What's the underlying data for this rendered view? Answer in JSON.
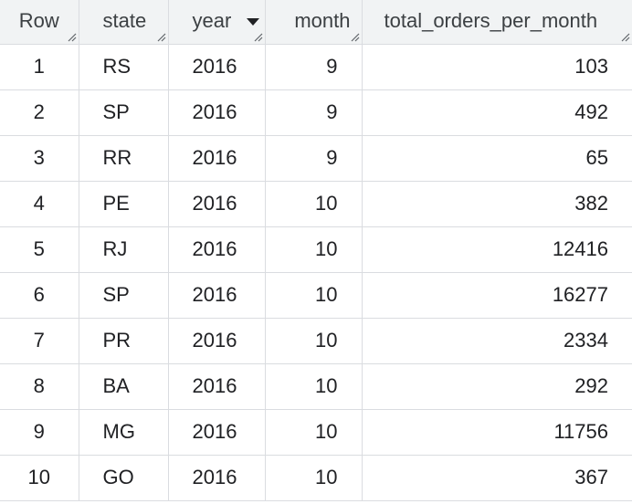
{
  "table": {
    "columns": [
      {
        "label": "Row"
      },
      {
        "label": "state"
      },
      {
        "label": "year",
        "sorted": "descending"
      },
      {
        "label": "month"
      },
      {
        "label": "total_orders_per_month"
      }
    ],
    "rows": [
      {
        "row": "1",
        "state": "RS",
        "year": "2016",
        "month": "9",
        "total": "103"
      },
      {
        "row": "2",
        "state": "SP",
        "year": "2016",
        "month": "9",
        "total": "492"
      },
      {
        "row": "3",
        "state": "RR",
        "year": "2016",
        "month": "9",
        "total": "65"
      },
      {
        "row": "4",
        "state": "PE",
        "year": "2016",
        "month": "10",
        "total": "382"
      },
      {
        "row": "5",
        "state": "RJ",
        "year": "2016",
        "month": "10",
        "total": "12416"
      },
      {
        "row": "6",
        "state": "SP",
        "year": "2016",
        "month": "10",
        "total": "16277"
      },
      {
        "row": "7",
        "state": "PR",
        "year": "2016",
        "month": "10",
        "total": "2334"
      },
      {
        "row": "8",
        "state": "BA",
        "year": "2016",
        "month": "10",
        "total": "292"
      },
      {
        "row": "9",
        "state": "MG",
        "year": "2016",
        "month": "10",
        "total": "11756"
      },
      {
        "row": "10",
        "state": "GO",
        "year": "2016",
        "month": "10",
        "total": "367"
      }
    ]
  }
}
